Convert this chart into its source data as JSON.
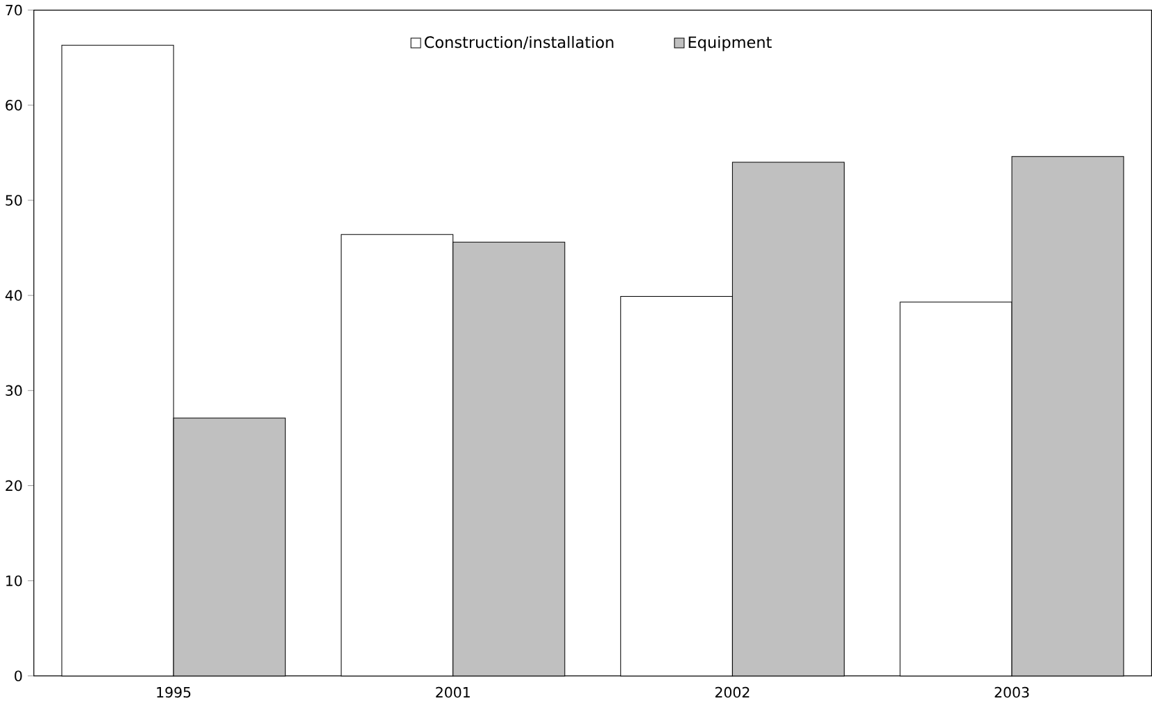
{
  "chart_data": {
    "type": "bar",
    "categories": [
      "1995",
      "2001",
      "2002",
      "2003"
    ],
    "series": [
      {
        "name": "Construction/installation",
        "color": "#ffffff",
        "values": [
          66.3,
          46.4,
          39.9,
          39.3
        ]
      },
      {
        "name": "Equipment",
        "color": "#c0c0c0",
        "values": [
          27.1,
          45.6,
          54,
          54.6
        ]
      }
    ],
    "ylim": [
      0,
      70
    ],
    "yticks": [
      0,
      10,
      20,
      30,
      40,
      50,
      60,
      70
    ],
    "grid": false,
    "legend": "top"
  }
}
